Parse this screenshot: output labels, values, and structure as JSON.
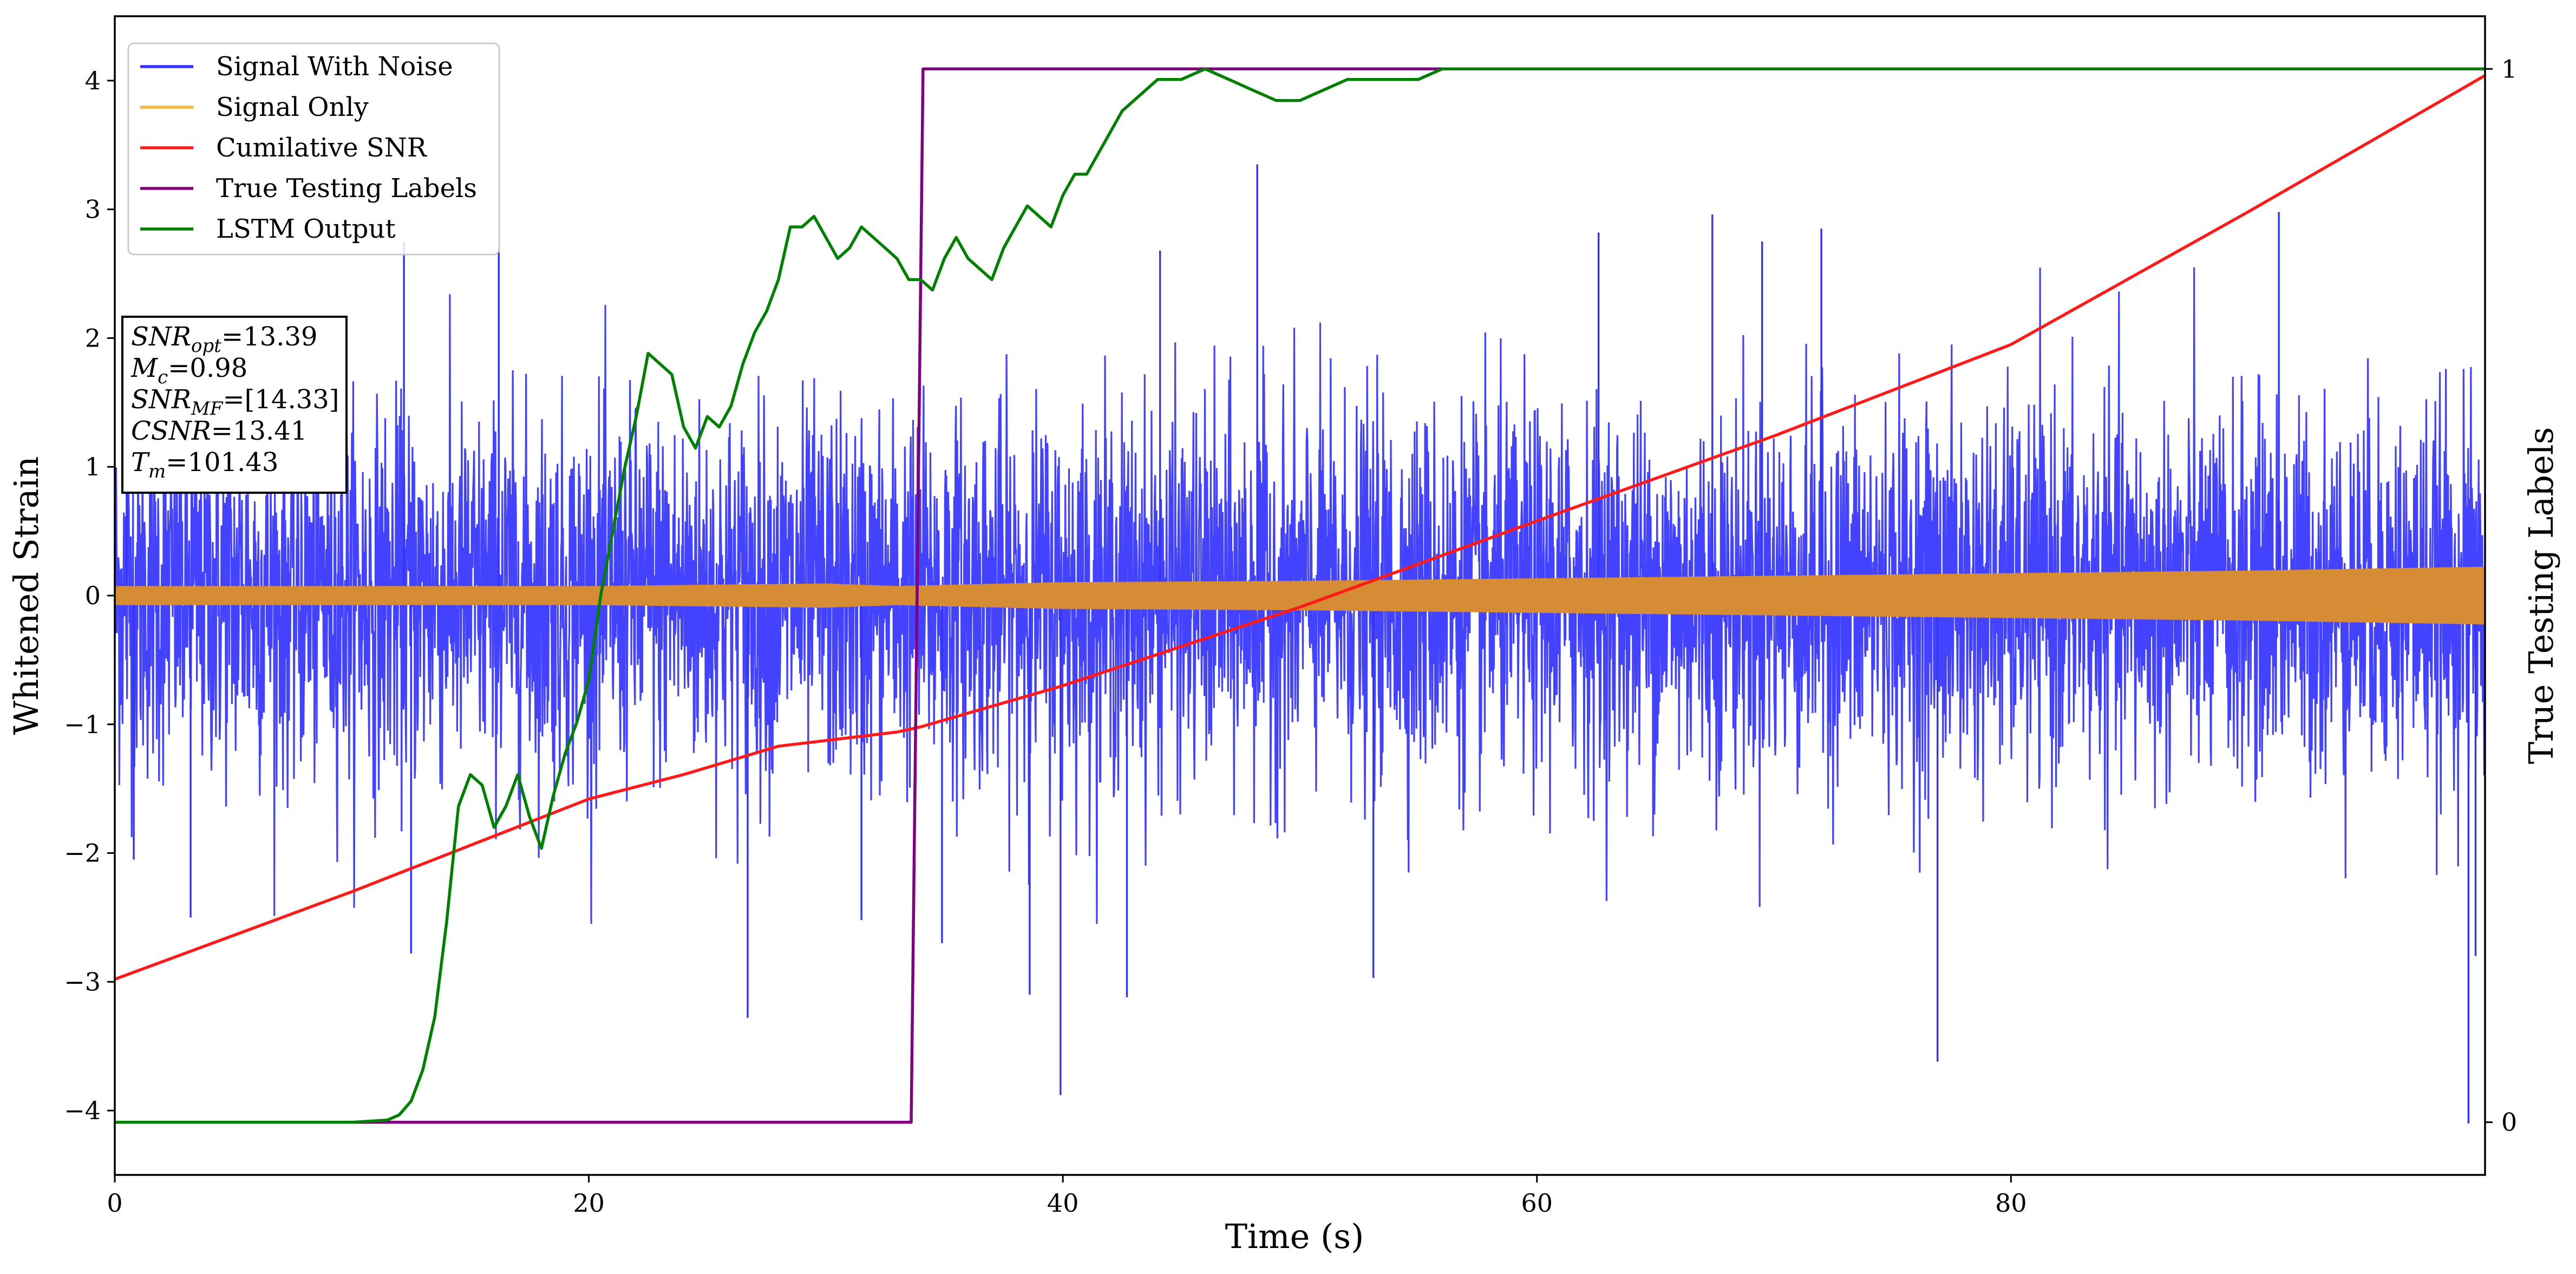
{
  "chart_data": {
    "type": "line",
    "xlabel": "Time (s)",
    "ylabel": "Whitened Strain",
    "y2label": "True Testing Labels",
    "xlim": [
      0,
      100
    ],
    "ylim": [
      -4.5,
      4.5
    ],
    "y2lim": [
      -0.05,
      1.05
    ],
    "x_ticks": [
      0,
      20,
      40,
      60,
      80
    ],
    "y_ticks": [
      -4,
      -3,
      -2,
      -1,
      0,
      1,
      2,
      3,
      4
    ],
    "y2_ticks": [
      0,
      1
    ],
    "legend_position": "top-left",
    "legend": [
      {
        "name": "Signal With Noise",
        "color": "#3333ff"
      },
      {
        "name": "Signal Only",
        "color": "#f5b642"
      },
      {
        "name": "Cumilative SNR",
        "color": "#ff1a1a"
      },
      {
        "name": "True Testing Labels",
        "color": "#800080"
      },
      {
        "name": "LSTM Output",
        "color": "#008000"
      }
    ],
    "stats_box": [
      {
        "base": "SNR",
        "sub": "opt",
        "value": "=13.39"
      },
      {
        "base": "M",
        "sub": "c",
        "value": "=0.98"
      },
      {
        "base": "SNR",
        "sub": "MF",
        "value": "=[14.33]"
      },
      {
        "base": "CSNR",
        "sub": "",
        "value": "=13.41"
      },
      {
        "base": "T",
        "sub": "m",
        "value": "=101.43"
      }
    ],
    "series": [
      {
        "name": "Signal With Noise",
        "axis": "left",
        "style": "dense_noise",
        "color": "#3333ff",
        "x_range": [
          0,
          100
        ],
        "typical_band": [
          -1.3,
          1.3
        ],
        "extremes": [
          {
            "x": 0.5,
            "y": 2.05
          },
          {
            "x": 0.8,
            "y": -2.05
          },
          {
            "x": 3.2,
            "y": -2.5
          },
          {
            "x": 12.2,
            "y": 2.75
          },
          {
            "x": 12.5,
            "y": -2.78
          },
          {
            "x": 16.2,
            "y": 2.7
          },
          {
            "x": 26.7,
            "y": -3.28
          },
          {
            "x": 31.5,
            "y": -2.52
          },
          {
            "x": 34.9,
            "y": -2.7
          },
          {
            "x": 38.6,
            "y": -3.1
          },
          {
            "x": 39.9,
            "y": -3.88
          },
          {
            "x": 42.7,
            "y": -3.12
          },
          {
            "x": 44.1,
            "y": 2.68
          },
          {
            "x": 48.2,
            "y": 3.35
          },
          {
            "x": 53.1,
            "y": -2.97
          },
          {
            "x": 62.6,
            "y": 2.82
          },
          {
            "x": 67.4,
            "y": 2.96
          },
          {
            "x": 69.5,
            "y": 2.75
          },
          {
            "x": 72.0,
            "y": 2.85
          },
          {
            "x": 76.9,
            "y": -3.62
          },
          {
            "x": 91.3,
            "y": 2.98
          },
          {
            "x": 99.3,
            "y": -4.1
          },
          {
            "x": 99.6,
            "y": -2.8
          }
        ]
      },
      {
        "name": "Signal Only",
        "axis": "left",
        "style": "band",
        "color": "#d68b35",
        "x": [
          0,
          20,
          30,
          33,
          40,
          50,
          60,
          70,
          80,
          90,
          100
        ],
        "half_width": [
          0.07,
          0.07,
          0.09,
          0.07,
          0.1,
          0.11,
          0.13,
          0.15,
          0.17,
          0.19,
          0.22
        ]
      },
      {
        "name": "Cumilative SNR",
        "axis": "left",
        "style": "line",
        "color": "#ff1a1a",
        "x": [
          0,
          10,
          20,
          24,
          28,
          33,
          34,
          40,
          50,
          60,
          70,
          80,
          90,
          100
        ],
        "y": [
          -2.98,
          -2.3,
          -1.58,
          -1.39,
          -1.17,
          -1.06,
          -1.02,
          -0.7,
          -0.09,
          0.58,
          1.24,
          1.95,
          2.98,
          4.04
        ]
      },
      {
        "name": "True Testing Labels",
        "axis": "right",
        "style": "line",
        "color": "#800080",
        "x": [
          0,
          33.6,
          34.1,
          100
        ],
        "y": [
          0,
          0,
          1,
          1
        ]
      },
      {
        "name": "LSTM Output",
        "axis": "right",
        "style": "line",
        "color": "#008000",
        "x": [
          0,
          10,
          11.5,
          12,
          12.5,
          13,
          13.5,
          14,
          14.5,
          15,
          15.5,
          16,
          16.5,
          17,
          17.5,
          18,
          18.5,
          19,
          19.5,
          20,
          20.5,
          21,
          21.5,
          22,
          22.5,
          23,
          23.5,
          24,
          24.5,
          25,
          25.5,
          26,
          26.5,
          27,
          27.5,
          28,
          28.5,
          29,
          29.5,
          30,
          30.5,
          31,
          31.5,
          32,
          32.5,
          33,
          33.5,
          34,
          34.5,
          35,
          35.5,
          36,
          36.5,
          37,
          37.5,
          38,
          38.5,
          39,
          39.5,
          40,
          40.5,
          41,
          41.5,
          42,
          42.5,
          43,
          43.5,
          44,
          45,
          46,
          47,
          48,
          49,
          50,
          51,
          52,
          53,
          54,
          55,
          56,
          58,
          60,
          65,
          70,
          100
        ],
        "y": [
          0,
          0,
          0.002,
          0.007,
          0.02,
          0.05,
          0.1,
          0.19,
          0.3,
          0.33,
          0.32,
          0.28,
          0.3,
          0.33,
          0.29,
          0.26,
          0.31,
          0.35,
          0.38,
          0.42,
          0.5,
          0.56,
          0.62,
          0.67,
          0.73,
          0.72,
          0.71,
          0.66,
          0.64,
          0.67,
          0.66,
          0.68,
          0.72,
          0.75,
          0.77,
          0.8,
          0.85,
          0.85,
          0.86,
          0.84,
          0.82,
          0.83,
          0.85,
          0.84,
          0.83,
          0.82,
          0.8,
          0.8,
          0.79,
          0.82,
          0.84,
          0.82,
          0.81,
          0.8,
          0.83,
          0.85,
          0.87,
          0.86,
          0.85,
          0.88,
          0.9,
          0.9,
          0.92,
          0.94,
          0.96,
          0.97,
          0.98,
          0.99,
          0.99,
          1,
          0.99,
          0.98,
          0.97,
          0.97,
          0.98,
          0.99,
          0.99,
          0.99,
          0.99,
          1,
          1,
          1,
          1,
          1,
          1
        ]
      }
    ]
  }
}
